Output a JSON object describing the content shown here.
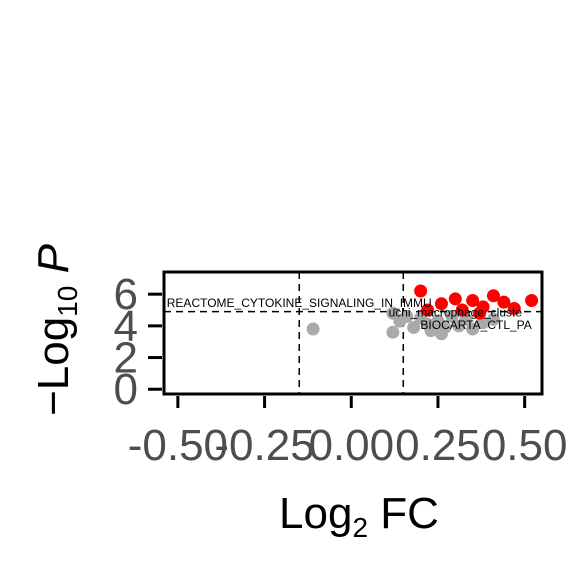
{
  "chart_data": {
    "type": "scatter",
    "title": "",
    "xlabel": {
      "base": "Log",
      "sub": "2",
      "rest": " FC"
    },
    "ylabel": {
      "prefix": "−Log",
      "sub": "10",
      "rest": " P"
    },
    "xlim": [
      -0.54,
      0.55
    ],
    "ylim": [
      -0.3,
      7.4
    ],
    "x_ticks": [
      {
        "value": -0.5,
        "label": "-0.50"
      },
      {
        "value": -0.25,
        "label": "-0.25"
      },
      {
        "value": 0.0,
        "label": "0.00"
      },
      {
        "value": 0.25,
        "label": "0.25"
      },
      {
        "value": 0.5,
        "label": "0.50"
      }
    ],
    "y_ticks": [
      {
        "value": 0,
        "label": "0"
      },
      {
        "value": 2,
        "label": "2"
      },
      {
        "value": 4,
        "label": "4"
      },
      {
        "value": 6,
        "label": "6"
      }
    ],
    "fc_cutoffs": [
      -0.15,
      0.15
    ],
    "p_cutoff": 4.9,
    "colors": {
      "significant": "#ff0000",
      "nonsignificant": "#aaaaaa",
      "axis": "#000000"
    },
    "series": [
      {
        "group": "significant",
        "points": [
          {
            "x": 0.2,
            "y": 6.2
          },
          {
            "x": 0.26,
            "y": 5.4
          },
          {
            "x": 0.3,
            "y": 5.7
          },
          {
            "x": 0.32,
            "y": 5.0
          },
          {
            "x": 0.35,
            "y": 5.6
          },
          {
            "x": 0.37,
            "y": 4.8
          },
          {
            "x": 0.38,
            "y": 5.2
          },
          {
            "x": 0.41,
            "y": 5.9
          },
          {
            "x": 0.44,
            "y": 5.5
          },
          {
            "x": 0.47,
            "y": 5.1
          },
          {
            "x": 0.52,
            "y": 5.6
          },
          {
            "x": 0.22,
            "y": 5.0
          }
        ]
      },
      {
        "group": "nonsignificant",
        "points": [
          {
            "x": -0.11,
            "y": 3.8
          },
          {
            "x": 0.12,
            "y": 3.6
          },
          {
            "x": 0.12,
            "y": 4.8
          },
          {
            "x": 0.14,
            "y": 4.3
          },
          {
            "x": 0.18,
            "y": 3.9
          },
          {
            "x": 0.2,
            "y": 4.5
          },
          {
            "x": 0.22,
            "y": 4.1
          },
          {
            "x": 0.23,
            "y": 3.7
          },
          {
            "x": 0.25,
            "y": 4.3
          },
          {
            "x": 0.27,
            "y": 3.9
          },
          {
            "x": 0.29,
            "y": 4.6
          },
          {
            "x": 0.31,
            "y": 4.0
          },
          {
            "x": 0.33,
            "y": 4.4
          },
          {
            "x": 0.35,
            "y": 3.8
          },
          {
            "x": 0.38,
            "y": 4.2
          },
          {
            "x": 0.41,
            "y": 4.4
          },
          {
            "x": 0.26,
            "y": 3.5
          },
          {
            "x": 0.16,
            "y": 4.6
          }
        ]
      }
    ],
    "annotations": [
      {
        "text": "REACTOME_CYTOKINE_SIGNALING_IN_IMMU",
        "x": -0.15,
        "y": 5.2
      },
      {
        "text": "uchi_macrophage_cluste",
        "x": 0.3,
        "y": 4.6
      },
      {
        "text": "BIOCARTA_CTL_PA",
        "x": 0.36,
        "y": 3.8
      }
    ]
  }
}
